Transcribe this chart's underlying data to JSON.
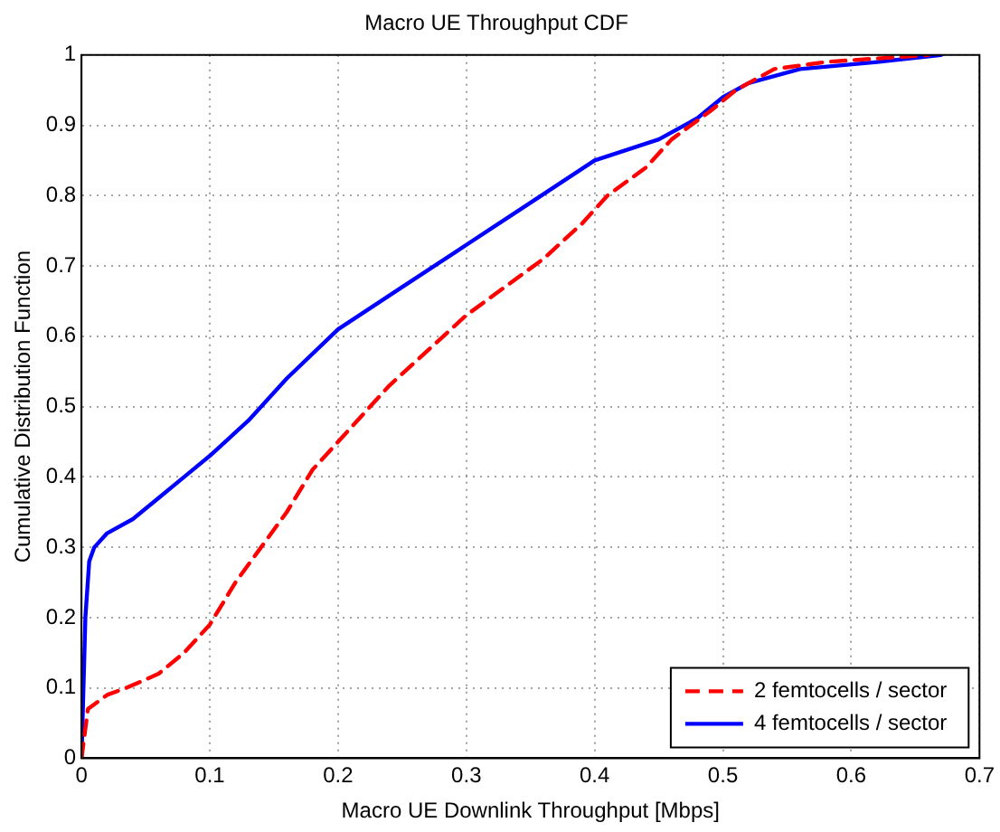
{
  "chart_data": {
    "type": "line",
    "title": "Macro UE Throughput CDF",
    "xlabel": "Macro UE Downlink Throughput [Mbps]",
    "ylabel": "Cumulative Distribution Function",
    "xlim": [
      0,
      0.7
    ],
    "xticks": [
      0,
      0.1,
      0.2,
      0.3,
      0.4,
      0.5,
      0.6,
      0.7
    ],
    "ylim": [
      0,
      1
    ],
    "yticks": [
      0,
      0.1,
      0.2,
      0.3,
      0.4,
      0.5,
      0.6,
      0.7,
      0.8,
      0.9,
      1
    ],
    "grid": true,
    "legend": "bottom right",
    "marker": "none",
    "series": [
      {
        "name": "2 femtocells / sector",
        "color": "#ff0000",
        "line_style": "dashed",
        "x": [
          0,
          0.005,
          0.02,
          0.035,
          0.06,
          0.08,
          0.1,
          0.12,
          0.14,
          0.16,
          0.18,
          0.21,
          0.24,
          0.27,
          0.3,
          0.33,
          0.36,
          0.39,
          0.41,
          0.44,
          0.46,
          0.49,
          0.51,
          0.54,
          0.58,
          0.66
        ],
        "values": [
          0,
          0.07,
          0.09,
          0.1,
          0.12,
          0.15,
          0.19,
          0.25,
          0.3,
          0.35,
          0.41,
          0.47,
          0.53,
          0.58,
          0.63,
          0.67,
          0.71,
          0.76,
          0.8,
          0.84,
          0.88,
          0.92,
          0.95,
          0.98,
          0.99,
          1
        ]
      },
      {
        "name": "4 femtocells / sector",
        "color": "#0000ff",
        "line_style": "solid",
        "x": [
          0,
          0.003,
          0.006,
          0.01,
          0.02,
          0.04,
          0.06,
          0.08,
          0.1,
          0.13,
          0.16,
          0.2,
          0.25,
          0.3,
          0.35,
          0.4,
          0.45,
          0.48,
          0.5,
          0.52,
          0.56,
          0.62,
          0.67
        ],
        "values": [
          0,
          0.2,
          0.28,
          0.3,
          0.32,
          0.34,
          0.37,
          0.4,
          0.43,
          0.48,
          0.54,
          0.61,
          0.67,
          0.73,
          0.79,
          0.85,
          0.88,
          0.91,
          0.94,
          0.96,
          0.98,
          0.99,
          1
        ]
      }
    ]
  }
}
